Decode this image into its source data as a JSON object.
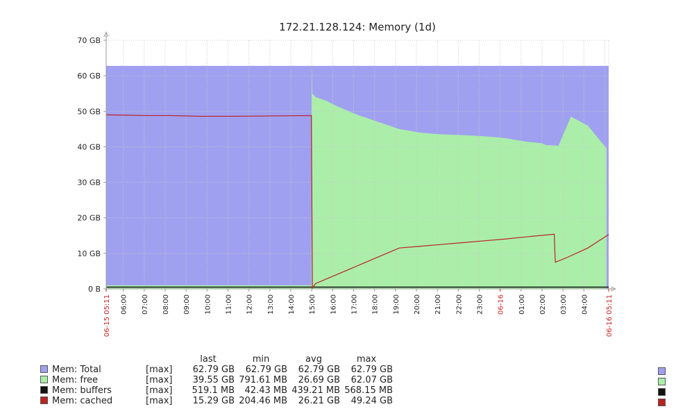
{
  "chart_data": {
    "type": "area",
    "title": "172.21.128.124: Memory (1d)",
    "y_ticks": [
      "0 B",
      "10 GB",
      "20 GB",
      "30 GB",
      "40 GB",
      "50 GB",
      "60 GB",
      "70 GB"
    ],
    "ylim": [
      0,
      70
    ],
    "x_range": [
      "06-15 05:11",
      "06-16 05:11"
    ],
    "x_ticks": [
      "06-15 05:11",
      "06:00",
      "07:00",
      "08:00",
      "09:00",
      "10:00",
      "11:00",
      "12:00",
      "13:00",
      "14:00",
      "15:00",
      "16:00",
      "17:00",
      "18:00",
      "19:00",
      "20:00",
      "21:00",
      "22:00",
      "23:00",
      "06-16",
      "01:00",
      "02:00",
      "03:00",
      "04:00",
      "06-16 05:11"
    ],
    "x_ticks_red": [
      "06-15 05:11",
      "06-16",
      "06-16 05:11"
    ],
    "grid": true,
    "series": [
      {
        "name": "Mem: Total",
        "color": "#a0a0f0",
        "x": [
          0,
          24
        ],
        "y": [
          62.79,
          62.79
        ]
      },
      {
        "name": "Mem: free",
        "color": "#aaeeaa",
        "x": [
          0,
          2,
          5,
          8,
          9.8,
          9.82,
          9.85,
          10.0,
          10.5,
          11,
          12,
          13,
          14,
          15,
          16,
          17,
          18,
          19,
          20,
          20.8,
          21.0,
          21.6,
          22.2,
          23,
          23.9
        ],
        "y": [
          1.0,
          1.0,
          1.0,
          1.0,
          1.0,
          62.0,
          55.0,
          54.0,
          53.0,
          51.5,
          49.0,
          47.0,
          45.0,
          44.0,
          43.5,
          43.3,
          43.0,
          42.5,
          41.5,
          41.0,
          40.5,
          40.3,
          48.5,
          46.0,
          39.55
        ]
      },
      {
        "name": "Mem: buffers",
        "color": "#111111",
        "x": [
          0,
          24
        ],
        "y": [
          0.5,
          0.5
        ]
      },
      {
        "name": "Mem: cached",
        "color": "#bb2222",
        "x": [
          0,
          1,
          2,
          3,
          4.5,
          6,
          8,
          9.8,
          9.85,
          10.0,
          11,
          12,
          13,
          14,
          15,
          16,
          17,
          18,
          19,
          20,
          21.4,
          21.45,
          22,
          23,
          24
        ],
        "y": [
          49.0,
          48.9,
          48.8,
          48.8,
          48.6,
          48.6,
          48.7,
          48.8,
          0.2,
          1.5,
          4.0,
          6.5,
          9.0,
          11.5,
          12.0,
          12.5,
          13.0,
          13.5,
          14.0,
          14.6,
          15.4,
          7.5,
          8.8,
          11.5,
          15.29
        ]
      }
    ],
    "legend": {
      "headers": [
        "last",
        "min",
        "avg",
        "max"
      ],
      "rows": [
        {
          "name": "Mem: Total",
          "fn": "[max]",
          "last": "62.79 GB",
          "min": "62.79 GB",
          "avg": "62.79 GB",
          "max": "62.79 GB",
          "color": "#a0a0f0"
        },
        {
          "name": "Mem: free",
          "fn": "[max]",
          "last": "39.55 GB",
          "min": "791.61 MB",
          "avg": "26.69 GB",
          "max": "62.07 GB",
          "color": "#aaeeaa"
        },
        {
          "name": "Mem: buffers",
          "fn": "[max]",
          "last": "519.1 MB",
          "min": "42.43 MB",
          "avg": "439.21 MB",
          "max": "568.15 MB",
          "color": "#111111"
        },
        {
          "name": "Mem: cached",
          "fn": "[max]",
          "last": "15.29 GB",
          "min": "204.46 MB",
          "avg": "26.21 GB",
          "max": "49.24 GB",
          "color": "#bb2222"
        }
      ]
    }
  }
}
